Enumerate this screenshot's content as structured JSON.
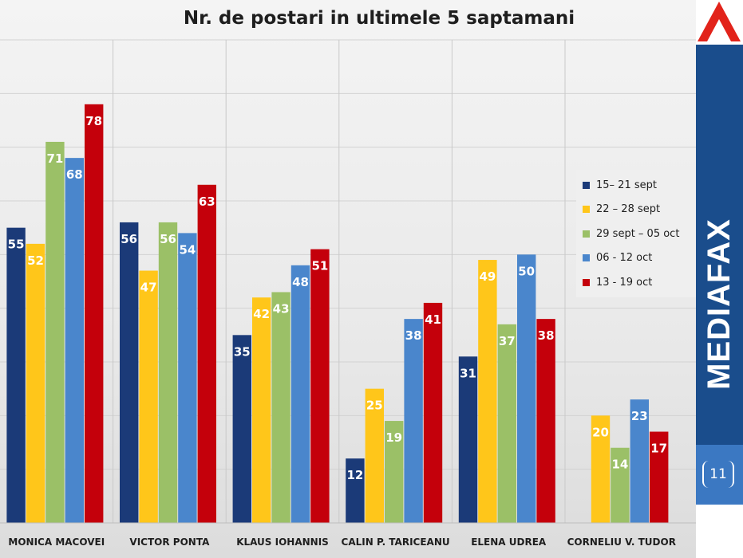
{
  "chart_data": {
    "type": "bar",
    "title": "Nr. de postari in ultimele 5 saptamani",
    "categories": [
      "MONICA MACOVEI",
      "VICTOR PONTA",
      "KLAUS IOHANNIS",
      "CALIN P. TARICEANU",
      "ELENA UDREA",
      "CORNELIU V. TUDOR"
    ],
    "series": [
      {
        "name": "15– 21 sept",
        "color": "#1b3a78",
        "values": [
          55,
          56,
          35,
          12,
          31,
          null
        ]
      },
      {
        "name": "22 – 28 sept",
        "color": "#ffc61a",
        "values": [
          52,
          47,
          42,
          25,
          49,
          20
        ]
      },
      {
        "name": "29 sept – 05 oct",
        "color": "#9bc067",
        "values": [
          71,
          56,
          43,
          19,
          37,
          14
        ]
      },
      {
        "name": "06 - 12 oct",
        "color": "#4a86cc",
        "values": [
          68,
          54,
          48,
          38,
          50,
          23
        ]
      },
      {
        "name": "13 - 19 oct",
        "color": "#c4000b",
        "values": [
          78,
          63,
          51,
          41,
          38,
          17
        ]
      }
    ],
    "ylim": [
      0,
      90
    ],
    "grid": true,
    "legend_position": "right"
  },
  "brand": "MEDIAFAX",
  "page_number": "11"
}
